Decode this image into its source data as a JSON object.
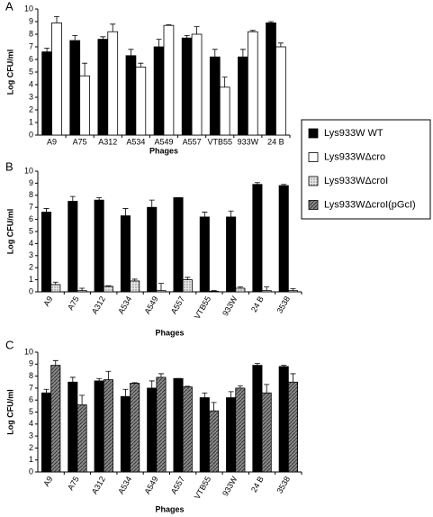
{
  "chart_data": [
    {
      "type": "bar",
      "label": "A",
      "y_label": "Log CFU/ml",
      "x_label": "Phages",
      "categories": [
        "A9",
        "A75",
        "A312",
        "A534",
        "A549",
        "A557",
        "VTB55",
        "933W",
        "24 B"
      ],
      "series": [
        {
          "name": "Lys933W WT",
          "color": "#000000",
          "values": [
            6.6,
            7.5,
            7.6,
            6.3,
            7.0,
            7.7,
            6.2,
            6.2,
            8.9
          ],
          "errors": [
            0.3,
            0.4,
            0.2,
            0.5,
            0.6,
            0.2,
            0.6,
            0.6,
            0.1
          ]
        },
        {
          "name": "Lys933WΔcro",
          "color": "#ffffff",
          "values": [
            8.9,
            4.7,
            8.2,
            5.4,
            8.7,
            8.0,
            3.8,
            8.2,
            7.0
          ],
          "errors": [
            0.5,
            1.0,
            0.6,
            0.3,
            0.05,
            0.6,
            0.8,
            0.1,
            0.3
          ]
        }
      ],
      "ylim": [
        0,
        10
      ],
      "yticks": [
        0,
        1,
        2,
        3,
        4,
        5,
        6,
        7,
        8,
        9,
        10
      ],
      "rotated_labels": false
    },
    {
      "type": "bar",
      "label": "B",
      "y_label": "Log CFU/ml",
      "x_label": "Phages",
      "categories": [
        "A9",
        "A75",
        "A312",
        "A534",
        "A549",
        "A557",
        "VTB55",
        "933W",
        "24 B",
        "3538"
      ],
      "series": [
        {
          "color": "#000000",
          "values": [
            6.6,
            7.5,
            7.6,
            6.3,
            7.0,
            7.8,
            6.2,
            6.2,
            8.9,
            8.8
          ],
          "errors": [
            0.3,
            0.4,
            0.2,
            0.6,
            0.6,
            0.0,
            0.4,
            0.5,
            0.15,
            0.1
          ]
        },
        {
          "name": "Lys933WΔcroI",
          "color": "#c8c8c8",
          "pattern": "dots",
          "values": [
            0.6,
            0.1,
            0.45,
            0.9,
            0.1,
            1.0,
            0.05,
            0.3,
            0.1,
            0.1
          ],
          "errors": [
            0.2,
            0.2,
            0.05,
            0.15,
            0.6,
            0.2,
            0.05,
            0.1,
            0.3,
            0.15
          ]
        }
      ],
      "ylim": [
        0,
        10
      ],
      "yticks": [
        0,
        1,
        2,
        3,
        4,
        5,
        6,
        7,
        8,
        9,
        10
      ],
      "rotated_labels": true
    },
    {
      "type": "bar",
      "label": "C",
      "y_label": "Log CFU/ml",
      "x_label": "Phages",
      "categories": [
        "A9",
        "A75",
        "A312",
        "A534",
        "A549",
        "A557",
        "VTB55",
        "933W",
        "24 B",
        "3538"
      ],
      "series": [
        {
          "color": "#000000",
          "values": [
            6.6,
            7.5,
            7.6,
            6.3,
            7.0,
            7.8,
            6.2,
            6.2,
            8.9,
            8.8
          ],
          "errors": [
            0.3,
            0.4,
            0.2,
            0.6,
            0.6,
            0.0,
            0.4,
            0.5,
            0.15,
            0.1
          ]
        },
        {
          "name": "Lys933WΔcroI(pGcI)",
          "color": "#6e6e6e",
          "pattern": "hatch",
          "values": [
            8.9,
            5.6,
            7.7,
            7.4,
            7.9,
            7.1,
            5.1,
            7.0,
            6.6,
            7.5
          ],
          "errors": [
            0.4,
            0.8,
            0.7,
            0.05,
            0.3,
            0.05,
            0.7,
            0.2,
            0.7,
            0.7
          ]
        }
      ],
      "ylim": [
        0,
        10
      ],
      "yticks": [
        0,
        1,
        2,
        3,
        4,
        5,
        6,
        7,
        8,
        9,
        10
      ],
      "rotated_labels": true
    }
  ]
}
